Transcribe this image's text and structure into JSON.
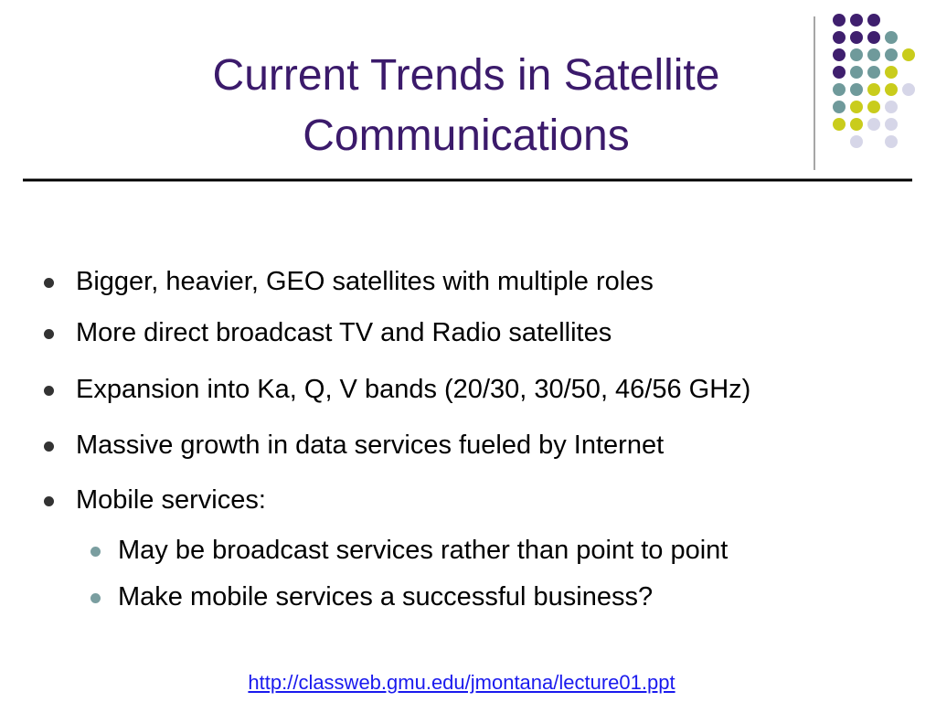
{
  "title": "Current Trends in Satellite Communications",
  "bullets": [
    {
      "text": "Bigger,  heavier, GEO satellites with multiple roles"
    },
    {
      "text": "More direct broadcast TV and Radio satellites"
    },
    {
      "text": "Expansion into Ka, Q, V bands (20/30,  30/50, 46/56 GHz)"
    },
    {
      "text": "Massive growth in data services fueled by Internet"
    },
    {
      "text": "Mobile services:",
      "sub": [
        "May be broadcast services rather than point to point",
        "Make mobile services a successful business?"
      ]
    }
  ],
  "link": "http://classweb.gmu.edu/jmontana/lecture01.ppt"
}
